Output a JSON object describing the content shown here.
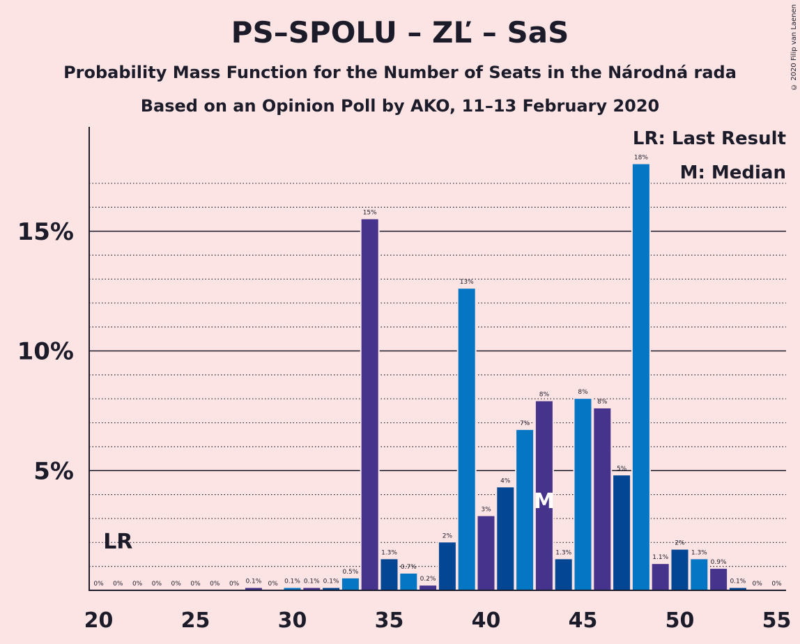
{
  "title": "PS–SPOLU – ZĽ – SaS",
  "subtitle": "Probability Mass Function for the Number of Seats in the Národná rada",
  "subtitle2": "Based on an Opinion Poll by AKO, 11–13 February 2020",
  "copyright": "© 2020 Filip van Laenen",
  "legend": {
    "last_result": "LR: Last Result",
    "median": "M: Median"
  },
  "colors": {
    "background": "#fde4e4",
    "dark_blue": "#034693",
    "light_blue": "#0576c4",
    "purple": "#45338c"
  },
  "chart_data": {
    "type": "bar",
    "x": [
      20,
      21,
      22,
      23,
      24,
      25,
      26,
      27,
      28,
      29,
      30,
      31,
      32,
      33,
      34,
      35,
      36,
      37,
      38,
      39,
      40,
      41,
      42,
      43,
      44,
      45,
      46,
      47,
      48,
      49,
      50,
      51,
      52,
      53,
      54,
      55
    ],
    "values": [
      0,
      0,
      0,
      0,
      0,
      0,
      0,
      0,
      0.1,
      0,
      0.1,
      0.1,
      0.1,
      0.5,
      15.5,
      1.3,
      0.7,
      0.2,
      2.0,
      12.6,
      3.1,
      4.3,
      6.7,
      7.9,
      1.3,
      8.0,
      7.6,
      4.8,
      17.8,
      1.1,
      1.7,
      1.3,
      0.9,
      0.1,
      0,
      0
    ],
    "labels": [
      "0%",
      "0%",
      "0%",
      "0%",
      "0%",
      "0%",
      "0%",
      "0%",
      "0.1%",
      "0%",
      "0.1%",
      "0.1%",
      "0.1%",
      "0.5%",
      "15%",
      "1.3%",
      "0.7%",
      "0.2%",
      "2%",
      "13%",
      "3%",
      "4%",
      "7%",
      "8%",
      "1.3%",
      "8%",
      "8%",
      "5%",
      "18%",
      "1.1%",
      "2%",
      "1.3%",
      "0.9%",
      "0.1%",
      "0%",
      "0%"
    ],
    "x_ticks": [
      "20",
      "25",
      "30",
      "35",
      "40",
      "45",
      "50",
      "55"
    ],
    "x_tick_values": [
      20,
      25,
      30,
      35,
      40,
      45,
      50,
      55
    ],
    "y_ticks": [
      "5%",
      "10%",
      "15%"
    ],
    "y_tick_values": [
      5,
      10,
      15
    ],
    "ylim": [
      0,
      19.3
    ],
    "last_result_seat": 21,
    "last_result_label": "LR",
    "median_seat": 43,
    "median_label": "M",
    "grid": true
  }
}
